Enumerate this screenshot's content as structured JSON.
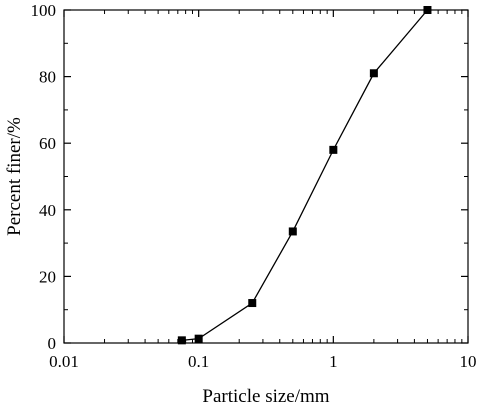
{
  "chart_data": {
    "type": "line",
    "title": "",
    "xlabel": "Particle size/mm",
    "ylabel": "Percent finer/%",
    "x_scale": "log",
    "xlim": [
      0.01,
      10
    ],
    "ylim": [
      0,
      100
    ],
    "x_ticks": [
      0.01,
      0.1,
      1,
      10
    ],
    "x_tick_labels": [
      "0.01",
      "0.1",
      "1",
      "10"
    ],
    "y_ticks": [
      0,
      20,
      40,
      60,
      80,
      100
    ],
    "y_tick_labels": [
      "0",
      "20",
      "40",
      "60",
      "80",
      "100"
    ],
    "grid": false,
    "legend": "none",
    "series": [
      {
        "x": [
          0.075,
          0.1,
          0.25,
          0.5,
          1,
          2,
          5
        ],
        "y": [
          0.8,
          1.3,
          12,
          33.5,
          58,
          81,
          100
        ],
        "marker": "square",
        "color": "#000000"
      }
    ]
  }
}
